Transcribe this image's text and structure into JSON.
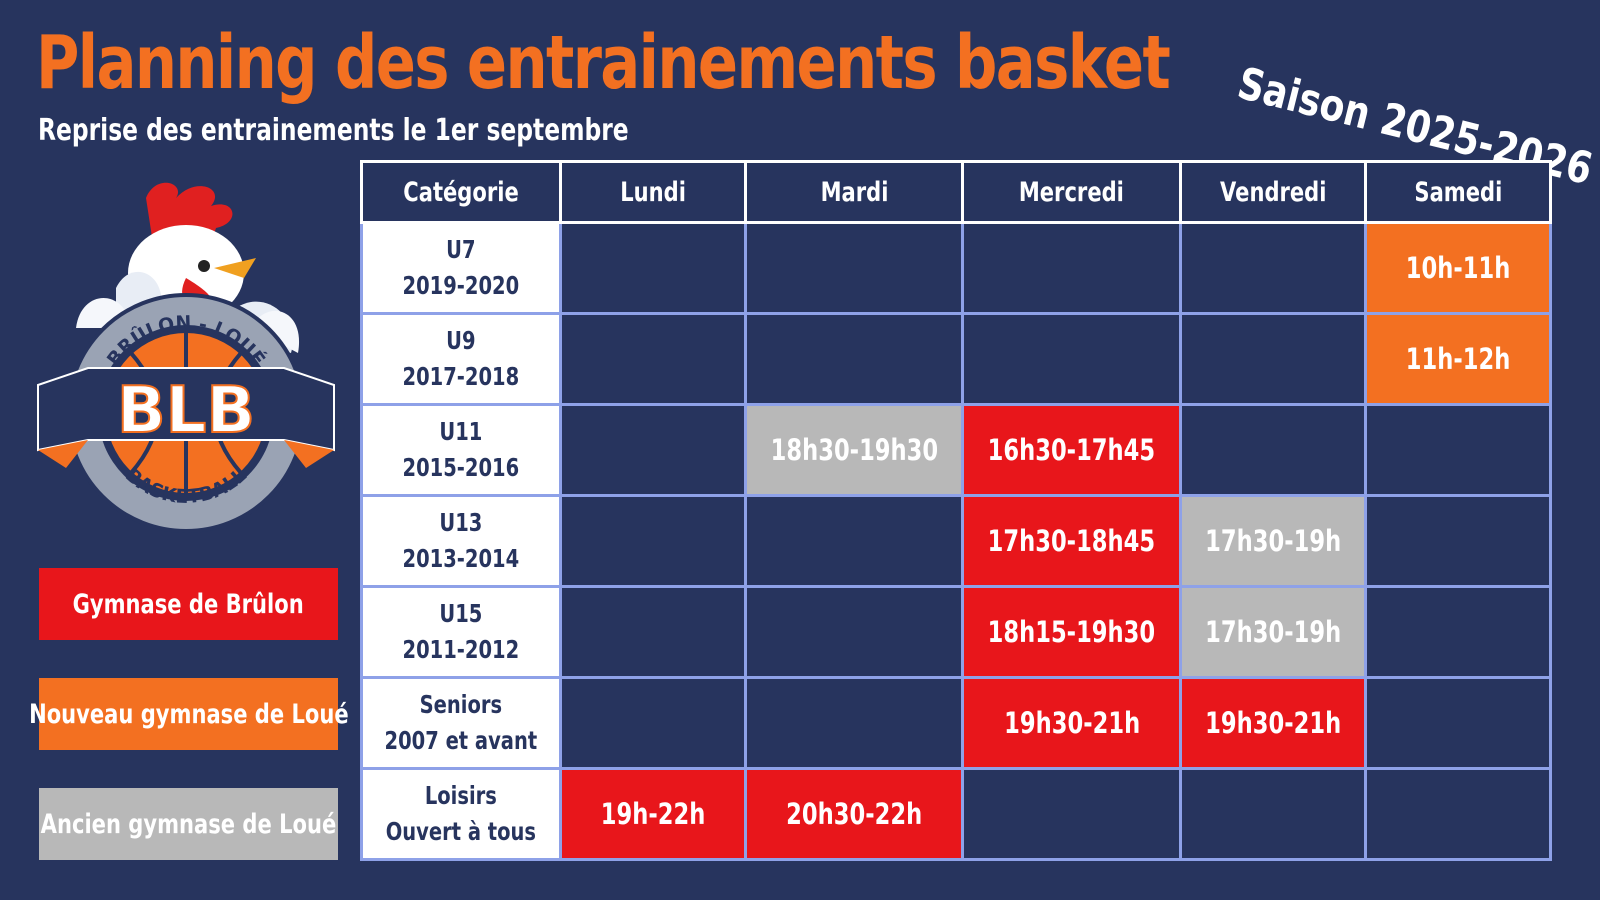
{
  "title": "Planning des entrainements basket",
  "subtitle": "Reprise des entrainements le 1er septembre",
  "season": "Saison 2025-2026",
  "logo": {
    "top_text": "BRÛLON - LOUÉ",
    "letters": "BLB",
    "bottom_text": "BASKETBALL"
  },
  "colors": {
    "background": "#27345e",
    "title": "#f37021",
    "red": "#e8161b",
    "orange": "#f37021",
    "grey": "#b8b8b8",
    "grid": "#8ea1e8"
  },
  "legend": [
    {
      "label": "Gymnase de Brûlon",
      "color": "red"
    },
    {
      "label": "Nouveau gymnase de Loué",
      "color": "orange"
    },
    {
      "label": "Ancien gymnase de Loué",
      "color": "grey"
    }
  ],
  "schedule": {
    "headers": [
      "Catégorie",
      "Lundi",
      "Mardi",
      "Mercredi",
      "Vendredi",
      "Samedi"
    ],
    "rows": [
      {
        "cat1": "U7",
        "cat2": "2019-2020",
        "cells": [
          {
            "t": "",
            "c": "none"
          },
          {
            "t": "",
            "c": "none"
          },
          {
            "t": "",
            "c": "none"
          },
          {
            "t": "",
            "c": "none"
          },
          {
            "t": "10h-11h",
            "c": "orange"
          }
        ]
      },
      {
        "cat1": "U9",
        "cat2": "2017-2018",
        "cells": [
          {
            "t": "",
            "c": "none"
          },
          {
            "t": "",
            "c": "none"
          },
          {
            "t": "",
            "c": "none"
          },
          {
            "t": "",
            "c": "none"
          },
          {
            "t": "11h-12h",
            "c": "orange"
          }
        ]
      },
      {
        "cat1": "U11",
        "cat2": "2015-2016",
        "cells": [
          {
            "t": "",
            "c": "none"
          },
          {
            "t": "18h30-19h30",
            "c": "grey"
          },
          {
            "t": "16h30-17h45",
            "c": "red"
          },
          {
            "t": "",
            "c": "none"
          },
          {
            "t": "",
            "c": "none"
          }
        ]
      },
      {
        "cat1": "U13",
        "cat2": "2013-2014",
        "cells": [
          {
            "t": "",
            "c": "none"
          },
          {
            "t": "",
            "c": "none"
          },
          {
            "t": "17h30-18h45",
            "c": "red"
          },
          {
            "t": "17h30-19h",
            "c": "grey"
          },
          {
            "t": "",
            "c": "none"
          }
        ]
      },
      {
        "cat1": "U15",
        "cat2": "2011-2012",
        "cells": [
          {
            "t": "",
            "c": "none"
          },
          {
            "t": "",
            "c": "none"
          },
          {
            "t": "18h15-19h30",
            "c": "red"
          },
          {
            "t": "17h30-19h",
            "c": "grey"
          },
          {
            "t": "",
            "c": "none"
          }
        ]
      },
      {
        "cat1": "Seniors",
        "cat2": "2007 et avant",
        "cells": [
          {
            "t": "",
            "c": "none"
          },
          {
            "t": "",
            "c": "none"
          },
          {
            "t": "19h30-21h",
            "c": "red"
          },
          {
            "t": "19h30-21h",
            "c": "red"
          },
          {
            "t": "",
            "c": "none"
          }
        ]
      },
      {
        "cat1": "Loisirs",
        "cat2": "Ouvert à tous",
        "cells": [
          {
            "t": "19h-22h",
            "c": "red"
          },
          {
            "t": "20h30-22h",
            "c": "red"
          },
          {
            "t": "",
            "c": "none"
          },
          {
            "t": "",
            "c": "none"
          },
          {
            "t": "",
            "c": "none"
          }
        ]
      }
    ]
  }
}
